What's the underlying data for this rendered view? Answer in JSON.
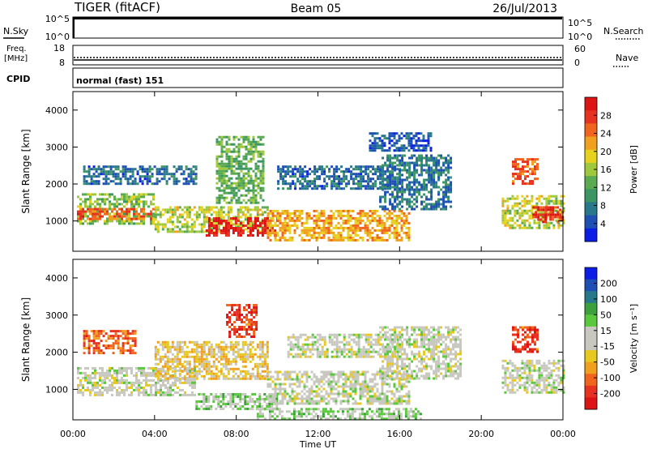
{
  "header": {
    "radar": "TIGER (fitACF)",
    "beam": "Beam 05",
    "date": "26/Jul/2013"
  },
  "strip_panels": {
    "nsky": {
      "label": "N.Sky",
      "ticks": [
        "10^5",
        "10^0"
      ],
      "right_ticks": [
        "10^5",
        "10^0"
      ],
      "right_label": "N.Search"
    },
    "freq": {
      "label_line1": "Freq.",
      "label_line2": "[MHz]",
      "ticks": [
        "18",
        "8"
      ],
      "right_ticks": [
        "60",
        "0"
      ],
      "right_label": "Nave"
    },
    "cpid": {
      "label": "CPID",
      "mode": "normal (fast) 151"
    }
  },
  "chart_data": [
    {
      "type": "heatmap",
      "title": "",
      "xlabel": "Time UT",
      "ylabel": "Slant Range [km]",
      "x_ticks": [
        "00:00",
        "04:00",
        "08:00",
        "12:00",
        "16:00",
        "20:00",
        "00:00"
      ],
      "y_ticks": [
        "4000",
        "3000",
        "2000",
        "1000"
      ],
      "xlim_hours": [
        0,
        24
      ],
      "ylim_km": [
        180,
        4500
      ],
      "colorbar": {
        "label": "Power [dB]",
        "ticks": [
          "28",
          "24",
          "20",
          "16",
          "12",
          "8",
          "4"
        ],
        "range": [
          0,
          30
        ],
        "colors": [
          "#0a1ee6",
          "#1e50b4",
          "#28788c",
          "#3c9664",
          "#5aaa50",
          "#a0c83c",
          "#e6d21e",
          "#f0a01e",
          "#f0641e",
          "#e6321e",
          "#dc1414"
        ]
      },
      "echo_regions": [
        {
          "t": [
            0.2,
            4.0
          ],
          "range_km": [
            900,
            1750
          ],
          "value_db": 14
        },
        {
          "t": [
            0.2,
            4.0
          ],
          "range_km": [
            1050,
            1350
          ],
          "value_db": 24
        },
        {
          "t": [
            0.5,
            6.0
          ],
          "range_km": [
            2000,
            2500
          ],
          "value_db": 6
        },
        {
          "t": [
            4.0,
            9.5
          ],
          "range_km": [
            700,
            1400
          ],
          "value_db": 16
        },
        {
          "t": [
            6.5,
            10.0
          ],
          "range_km": [
            600,
            1100
          ],
          "value_db": 28
        },
        {
          "t": [
            7.0,
            9.3
          ],
          "range_km": [
            1500,
            3300
          ],
          "value_db": 12
        },
        {
          "t": [
            9.5,
            16.5
          ],
          "range_km": [
            450,
            1300
          ],
          "value_db": 20
        },
        {
          "t": [
            10.0,
            16.0
          ],
          "range_km": [
            1900,
            2500
          ],
          "value_db": 6
        },
        {
          "t": [
            15.0,
            18.5
          ],
          "range_km": [
            1300,
            2800
          ],
          "value_db": 7
        },
        {
          "t": [
            14.5,
            17.5
          ],
          "range_km": [
            2900,
            3400
          ],
          "value_db": 5
        },
        {
          "t": [
            21.5,
            22.8
          ],
          "range_km": [
            2000,
            2700
          ],
          "value_db": 24
        },
        {
          "t": [
            21.0,
            24.0
          ],
          "range_km": [
            800,
            1700
          ],
          "value_db": 16
        },
        {
          "t": [
            22.5,
            24.0
          ],
          "range_km": [
            1000,
            1400
          ],
          "value_db": 26
        }
      ]
    },
    {
      "type": "heatmap",
      "title": "",
      "xlabel": "Time UT",
      "ylabel": "Slant Range [km]",
      "x_ticks": [
        "00:00",
        "04:00",
        "08:00",
        "12:00",
        "16:00",
        "20:00",
        "00:00"
      ],
      "y_ticks": [
        "4000",
        "3000",
        "2000",
        "1000"
      ],
      "xlim_hours": [
        0,
        24
      ],
      "ylim_km": [
        180,
        4500
      ],
      "colorbar": {
        "label": "Velocity [m s⁻¹]",
        "ticks": [
          "200",
          "100",
          "50",
          "15",
          "-15",
          "-50",
          "-100",
          "-200"
        ],
        "range": [
          -250,
          250
        ],
        "colors": [
          "#dc1414",
          "#e6321e",
          "#f0641e",
          "#f0a01e",
          "#e6c81e",
          "#c8c8c0",
          "#c8c8c0",
          "#5ac83c",
          "#3ca03c",
          "#28788c",
          "#1e50b4",
          "#0a1ee6"
        ]
      },
      "echo_regions": [
        {
          "t": [
            0.2,
            6.0
          ],
          "range_km": [
            850,
            1600
          ],
          "value_ms": 0
        },
        {
          "t": [
            0.5,
            3.0
          ],
          "range_km": [
            2000,
            2600
          ],
          "value_ms": -150
        },
        {
          "t": [
            4.0,
            9.5
          ],
          "range_km": [
            1300,
            2300
          ],
          "value_ms": -60
        },
        {
          "t": [
            6.0,
            10.0
          ],
          "range_km": [
            500,
            900
          ],
          "value_ms": 40
        },
        {
          "t": [
            7.5,
            9.0
          ],
          "range_km": [
            2400,
            3300
          ],
          "value_ms": -180
        },
        {
          "t": [
            9.5,
            16.5
          ],
          "range_km": [
            600,
            1500
          ],
          "value_ms": 0
        },
        {
          "t": [
            10.5,
            16.0
          ],
          "range_km": [
            1900,
            2500
          ],
          "value_ms": 0
        },
        {
          "t": [
            15.0,
            19.0
          ],
          "range_km": [
            1300,
            2700
          ],
          "value_ms": 0
        },
        {
          "t": [
            9.0,
            17.0
          ],
          "range_km": [
            180,
            500
          ],
          "value_ms": 40
        },
        {
          "t": [
            21.5,
            22.8
          ],
          "range_km": [
            2000,
            2700
          ],
          "value_ms": -180
        },
        {
          "t": [
            21.0,
            24.0
          ],
          "range_km": [
            900,
            1800
          ],
          "value_ms": 0
        }
      ]
    }
  ]
}
